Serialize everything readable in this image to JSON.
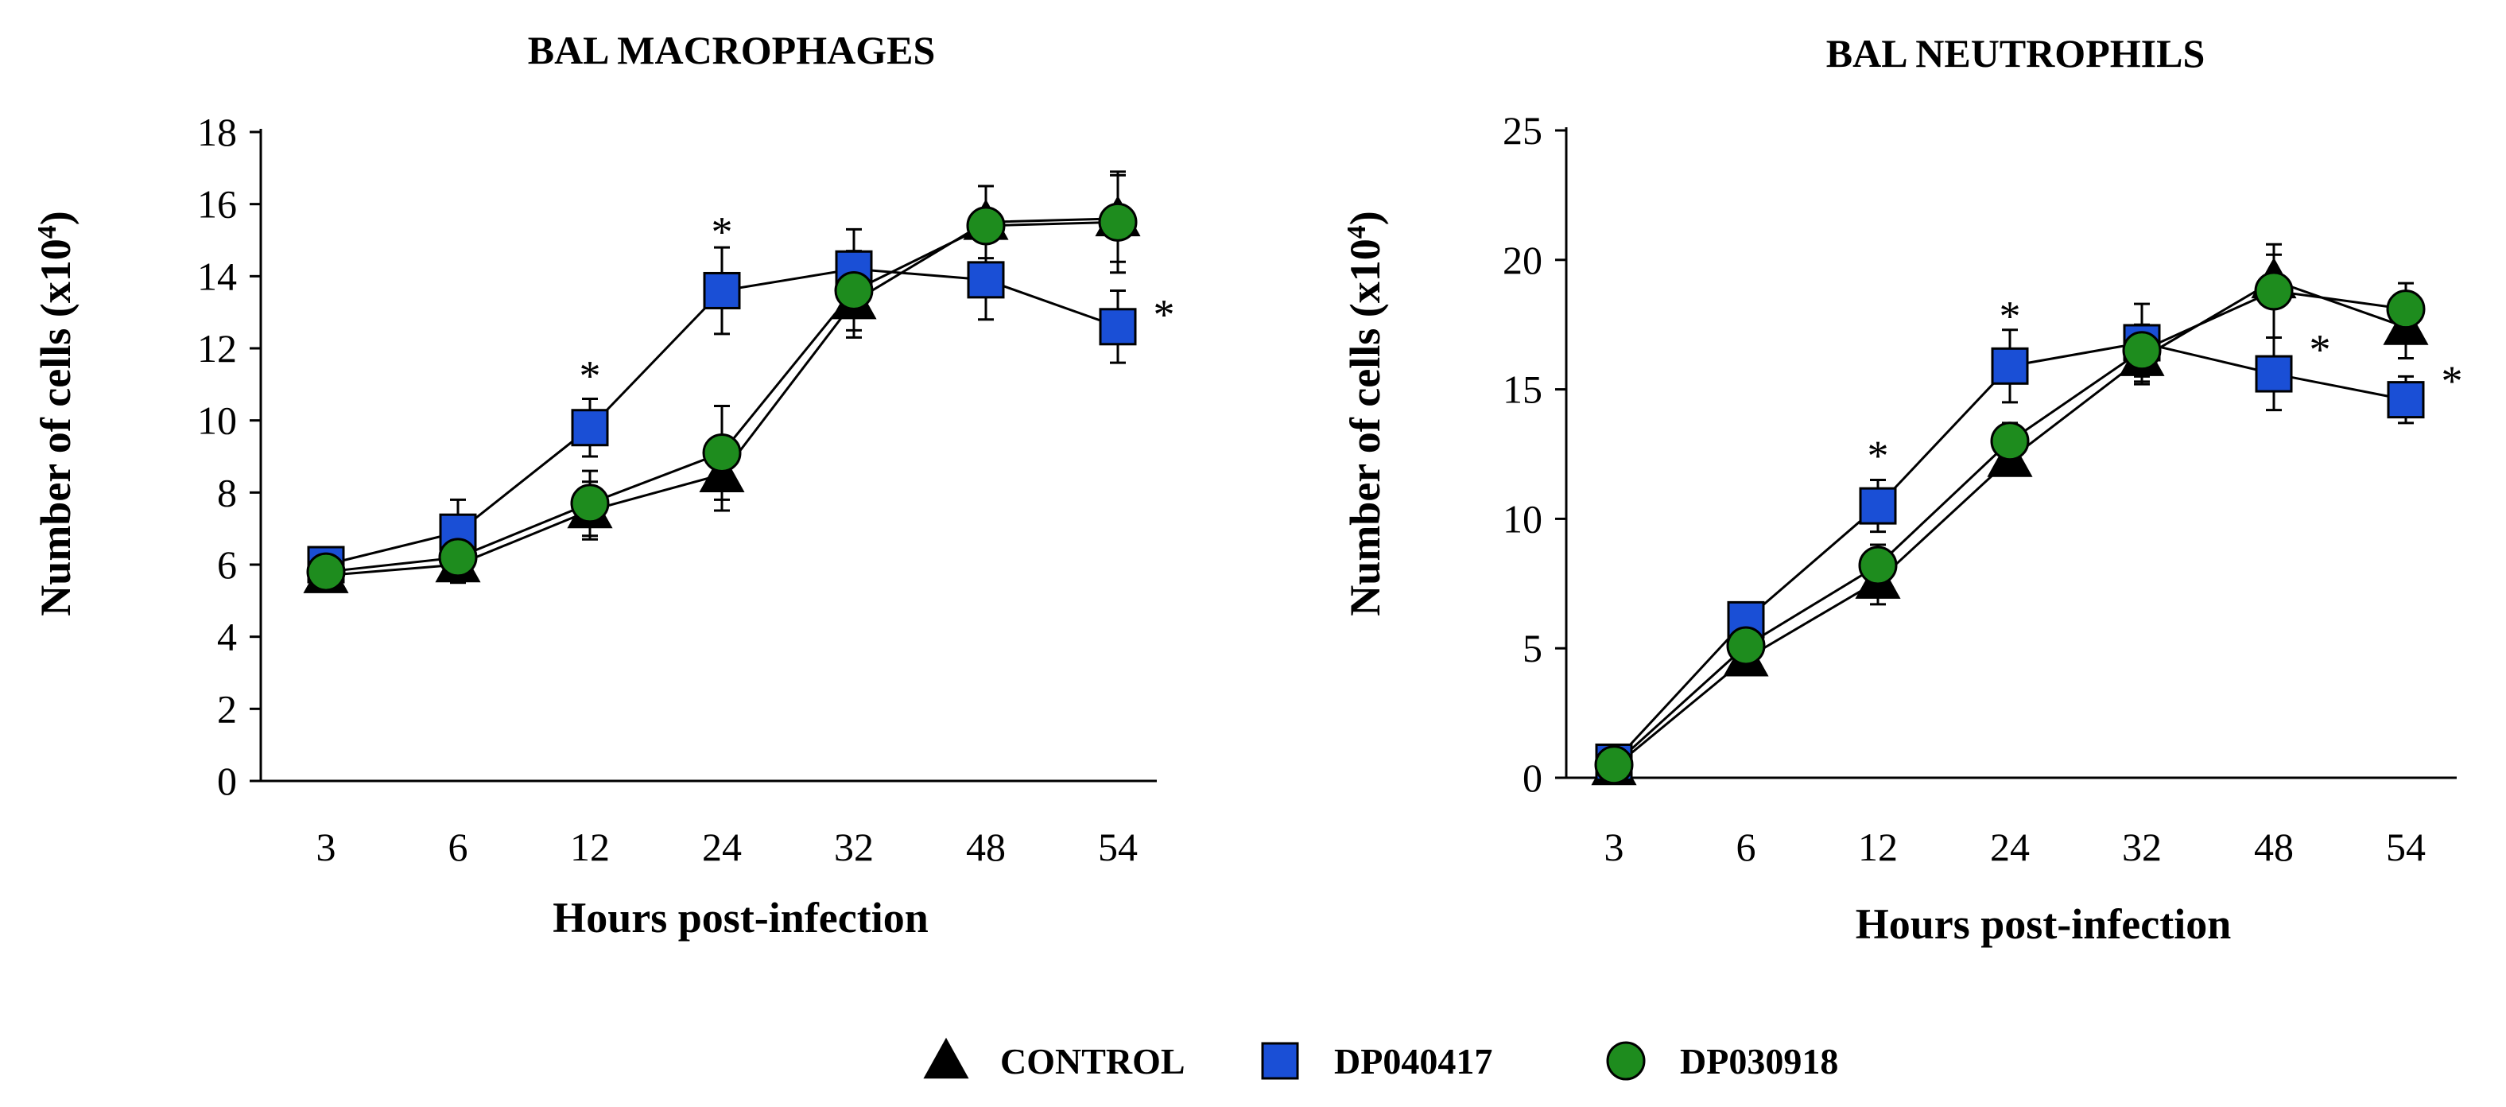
{
  "chart_data": [
    {
      "type": "line",
      "title": "BAL MACROPHAGES",
      "xlabel": "Hours post-infection",
      "ylabel": "Number of cells (x10",
      "ylabel_exponent": "4",
      "ylabel_suffix": ")",
      "categories": [
        "3",
        "6",
        "12",
        "24",
        "32",
        "48",
        "54"
      ],
      "ylim": [
        0,
        18
      ],
      "yticks": [
        0,
        2,
        4,
        6,
        8,
        10,
        12,
        14,
        16,
        18
      ],
      "grid": false,
      "series": [
        {
          "name": "CONTROL",
          "marker": "triangle",
          "color": "#000000",
          "values": [
            5.7,
            6.0,
            7.5,
            8.5,
            13.3,
            15.5,
            15.6
          ],
          "errors": [
            0.2,
            0.5,
            0.8,
            1.0,
            1.0,
            1.0,
            1.2
          ]
        },
        {
          "name": "DP040417",
          "marker": "square",
          "color": "#1a4fd6",
          "values": [
            6.0,
            6.9,
            9.8,
            13.6,
            14.2,
            13.9,
            12.6
          ],
          "errors": [
            0.3,
            0.9,
            0.8,
            1.2,
            1.1,
            1.1,
            1.0
          ]
        },
        {
          "name": "DP030918",
          "marker": "circle",
          "color": "#1e8c1e",
          "values": [
            5.8,
            6.2,
            7.7,
            9.1,
            13.6,
            15.4,
            15.5
          ],
          "errors": [
            0.3,
            0.7,
            0.9,
            1.3,
            1.1,
            1.1,
            1.4
          ]
        }
      ],
      "annotations": [
        {
          "text": "*",
          "category": "12",
          "y": 11.5
        },
        {
          "text": "*",
          "category": "24",
          "y": 15.5
        },
        {
          "text": "*",
          "category": "54",
          "y": 13.2,
          "offset": "right"
        }
      ]
    },
    {
      "type": "line",
      "title": "BAL NEUTROPHILS",
      "xlabel": "Hours post-infection",
      "ylabel": "Number of cells (x10",
      "ylabel_exponent": "4",
      "ylabel_suffix": ")",
      "categories": [
        "3",
        "6",
        "12",
        "24",
        "32",
        "48",
        "54"
      ],
      "ylim": [
        0,
        25
      ],
      "yticks": [
        0,
        5,
        10,
        15,
        20,
        25
      ],
      "grid": false,
      "series": [
        {
          "name": "CONTROL",
          "marker": "triangle",
          "color": "#000000",
          "values": [
            0.4,
            4.6,
            7.6,
            12.3,
            16.2,
            19.2,
            17.4
          ],
          "errors": [
            0.1,
            0.3,
            0.9,
            0.6,
            1.0,
            1.0,
            1.2
          ]
        },
        {
          "name": "DP040417",
          "marker": "square",
          "color": "#1a4fd6",
          "values": [
            0.6,
            6.1,
            10.5,
            15.9,
            16.8,
            15.6,
            14.6
          ],
          "errors": [
            0.1,
            0.4,
            1.0,
            1.4,
            1.5,
            1.4,
            0.9
          ]
        },
        {
          "name": "DP030918",
          "marker": "circle",
          "color": "#1e8c1e",
          "values": [
            0.5,
            5.1,
            8.2,
            13.0,
            16.5,
            18.8,
            18.1
          ],
          "errors": [
            0.1,
            0.4,
            0.8,
            0.7,
            1.0,
            1.8,
            1.0
          ]
        }
      ],
      "annotations": [
        {
          "text": "*",
          "category": "12",
          "y": 12.8
        },
        {
          "text": "*",
          "category": "24",
          "y": 18.2
        },
        {
          "text": "*",
          "category": "48",
          "y": 16.9,
          "offset": "right"
        },
        {
          "text": "*",
          "category": "54",
          "y": 15.7,
          "offset": "right"
        }
      ]
    }
  ],
  "legend": {
    "placement": "bottom-center",
    "items": [
      {
        "label": "CONTROL",
        "marker": "triangle",
        "color": "#000000"
      },
      {
        "label": "DP040417",
        "marker": "square",
        "color": "#1a4fd6"
      },
      {
        "label": "DP030918",
        "marker": "circle",
        "color": "#1e8c1e"
      }
    ]
  }
}
